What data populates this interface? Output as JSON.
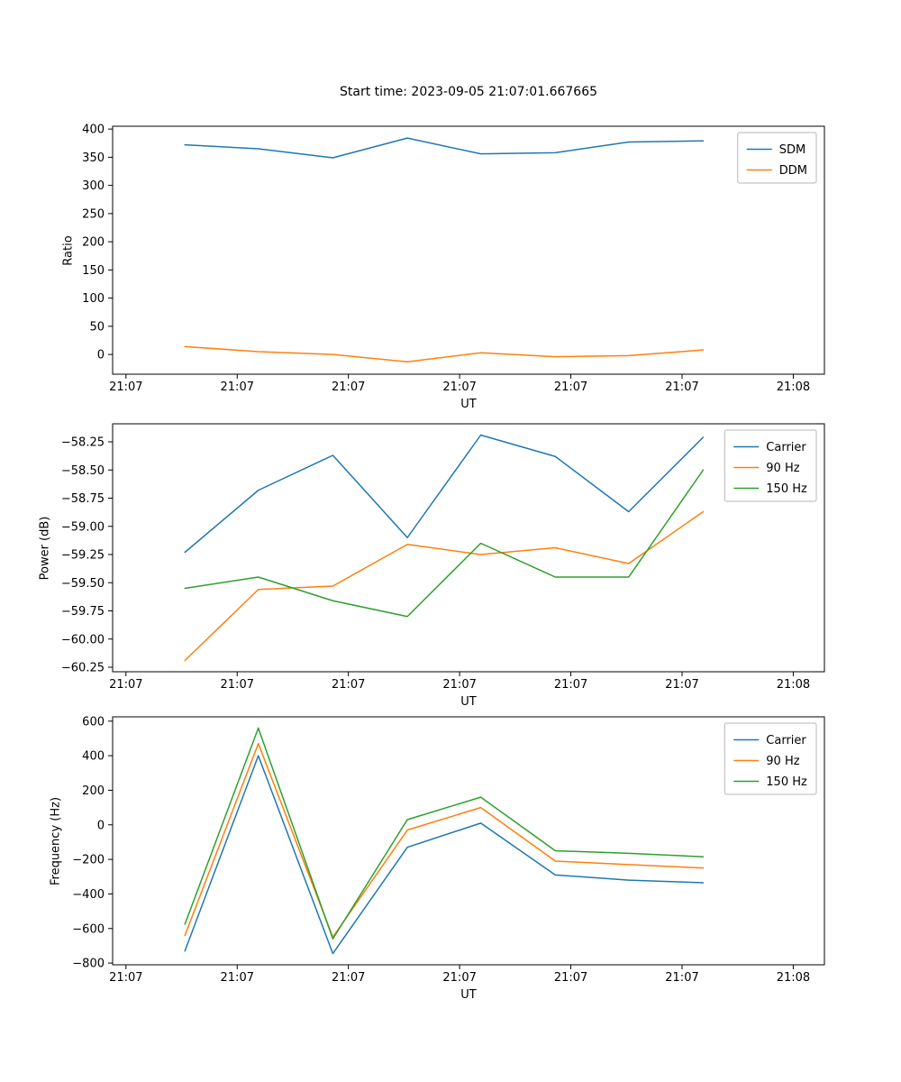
{
  "figure": {
    "title": "Start time: 2023-09-05 21:07:01.667665"
  },
  "colors": {
    "blue": "#1f77b4",
    "orange": "#ff7f0e",
    "green": "#2ca02c"
  },
  "chart_data": [
    {
      "type": "line",
      "title": "Start time: 2023-09-05 21:07:01.667665",
      "xlabel": "UT",
      "ylabel": "Ratio",
      "xlim": [
        -1.2,
        62.8
      ],
      "ylim": [
        -35,
        405
      ],
      "grid": false,
      "legend_position": "upper right",
      "x_ticks": {
        "values": [
          0,
          10,
          20,
          30,
          40,
          50,
          60
        ],
        "labels": [
          "21:07",
          "21:07",
          "21:07",
          "21:07",
          "21:07",
          "21:07",
          "21:08"
        ]
      },
      "y_ticks": {
        "values": [
          0,
          50,
          100,
          150,
          200,
          250,
          300,
          350,
          400
        ],
        "labels": [
          "0",
          "50",
          "100",
          "150",
          "200",
          "250",
          "300",
          "350",
          "400"
        ]
      },
      "x": [
        5.3,
        11.9,
        18.6,
        25.3,
        31.9,
        38.6,
        45.2,
        51.9
      ],
      "series": [
        {
          "name": "SDM",
          "color": "#1f77b4",
          "values": [
            372,
            365,
            349,
            384,
            356,
            358,
            377,
            379
          ]
        },
        {
          "name": "DDM",
          "color": "#ff7f0e",
          "values": [
            14,
            5,
            0,
            -13,
            3,
            -4,
            -2,
            8
          ]
        }
      ]
    },
    {
      "type": "line",
      "title": "",
      "xlabel": "UT",
      "ylabel": "Power (dB)",
      "xlim": [
        -1.2,
        62.8
      ],
      "ylim": [
        -60.29,
        -58.09
      ],
      "grid": false,
      "legend_position": "upper right",
      "x_ticks": {
        "values": [
          0,
          10,
          20,
          30,
          40,
          50,
          60
        ],
        "labels": [
          "21:07",
          "21:07",
          "21:07",
          "21:07",
          "21:07",
          "21:07",
          "21:08"
        ]
      },
      "y_ticks": {
        "values": [
          -60.25,
          -60.0,
          -59.75,
          -59.5,
          -59.25,
          -59.0,
          -58.75,
          -58.5,
          -58.25
        ],
        "labels": [
          "−60.25",
          "−60.00",
          "−59.75",
          "−59.50",
          "−59.25",
          "−59.00",
          "−58.75",
          "−58.50",
          "−58.25"
        ]
      },
      "x": [
        5.3,
        11.9,
        18.6,
        25.3,
        31.9,
        38.6,
        45.2,
        51.9
      ],
      "series": [
        {
          "name": "Carrier",
          "color": "#1f77b4",
          "values": [
            -59.23,
            -58.68,
            -58.37,
            -59.1,
            -58.19,
            -58.38,
            -58.87,
            -58.21
          ]
        },
        {
          "name": "90 Hz",
          "color": "#ff7f0e",
          "values": [
            -60.19,
            -59.56,
            -59.53,
            -59.16,
            -59.25,
            -59.19,
            -59.33,
            -58.87
          ]
        },
        {
          "name": "150 Hz",
          "color": "#2ca02c",
          "values": [
            -59.55,
            -59.45,
            -59.66,
            -59.8,
            -59.15,
            -59.45,
            -59.45,
            -58.5
          ]
        }
      ]
    },
    {
      "type": "line",
      "title": "",
      "xlabel": "UT",
      "ylabel": "Frequency (Hz)",
      "xlim": [
        -1.2,
        62.8
      ],
      "ylim": [
        -810,
        625
      ],
      "grid": false,
      "legend_position": "upper right",
      "x_ticks": {
        "values": [
          0,
          10,
          20,
          30,
          40,
          50,
          60
        ],
        "labels": [
          "21:07",
          "21:07",
          "21:07",
          "21:07",
          "21:07",
          "21:07",
          "21:08"
        ]
      },
      "y_ticks": {
        "values": [
          -800,
          -600,
          -400,
          -200,
          0,
          200,
          400,
          600
        ],
        "labels": [
          "−800",
          "−600",
          "−400",
          "−200",
          "0",
          "200",
          "400",
          "600"
        ]
      },
      "x": [
        5.3,
        11.9,
        18.6,
        25.3,
        31.9,
        38.6,
        45.2,
        51.9
      ],
      "series": [
        {
          "name": "Carrier",
          "color": "#1f77b4",
          "values": [
            -730,
            400,
            -745,
            -130,
            10,
            -290,
            -320,
            -335
          ]
        },
        {
          "name": "90 Hz",
          "color": "#ff7f0e",
          "values": [
            -640,
            470,
            -650,
            -30,
            100,
            -210,
            -230,
            -250
          ]
        },
        {
          "name": "150 Hz",
          "color": "#2ca02c",
          "values": [
            -575,
            560,
            -660,
            30,
            160,
            -150,
            -165,
            -185
          ]
        }
      ]
    }
  ]
}
